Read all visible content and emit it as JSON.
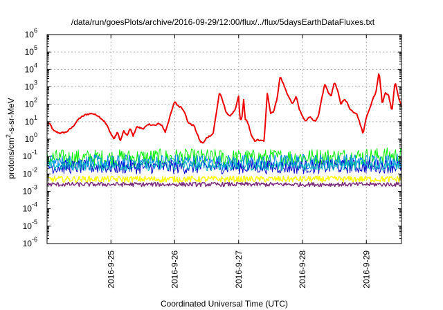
{
  "chart_data": {
    "type": "line",
    "title": "/data/run/goesPlots/archive/2016-09-29/12:00/flux/../flux/5daysEarthDataFluxes.txt",
    "xlabel": "Coordinated Universal Time (UTC)",
    "ylabel_parts": {
      "base": "protons/cm",
      "sup": "2",
      "rest": "-s-sr-MeV"
    },
    "xlim": [
      24.0,
      29.55
    ],
    "x_ticks": [
      {
        "x": 25,
        "label": "2016-9-25"
      },
      {
        "x": 26,
        "label": "2016-9-26"
      },
      {
        "x": 27,
        "label": "2016-9-27"
      },
      {
        "x": 28,
        "label": "2016-9-28"
      },
      {
        "x": 29,
        "label": "2016-9-29"
      }
    ],
    "y_scale": "log",
    "ylim": [
      1e-06,
      1000000.0
    ],
    "y_ticks": [
      {
        "exp": -6,
        "base": "10",
        "sup": "-6"
      },
      {
        "exp": -5,
        "base": "10",
        "sup": "-5"
      },
      {
        "exp": -4,
        "base": "10",
        "sup": "-4"
      },
      {
        "exp": -3,
        "base": "10",
        "sup": "-3"
      },
      {
        "exp": -2,
        "base": "10",
        "sup": "-2"
      },
      {
        "exp": -1,
        "base": "10",
        "sup": "-1"
      },
      {
        "exp": 0,
        "base": "10",
        "sup": "0"
      },
      {
        "exp": 1,
        "base": "10",
        "sup": "1"
      },
      {
        "exp": 2,
        "base": "10",
        "sup": "2"
      },
      {
        "exp": 3,
        "base": "10",
        "sup": "3"
      },
      {
        "exp": 4,
        "base": "10",
        "sup": "4"
      },
      {
        "exp": 5,
        "base": "10",
        "sup": "5"
      },
      {
        "exp": 6,
        "base": "10",
        "sup": "6"
      }
    ],
    "grid": true,
    "series": [
      {
        "color": "#ee0000",
        "width": 2,
        "noise": 0.04,
        "points": [
          [
            24.0,
            8
          ],
          [
            24.05,
            7
          ],
          [
            24.1,
            3
          ],
          [
            24.2,
            2.2
          ],
          [
            24.3,
            2.5
          ],
          [
            24.4,
            5
          ],
          [
            24.5,
            15
          ],
          [
            24.6,
            25
          ],
          [
            24.7,
            30
          ],
          [
            24.8,
            22
          ],
          [
            24.85,
            15
          ],
          [
            24.9,
            10
          ],
          [
            24.95,
            5
          ],
          [
            25.0,
            2
          ],
          [
            25.05,
            1
          ],
          [
            25.1,
            2.5
          ],
          [
            25.15,
            0.8
          ],
          [
            25.2,
            3
          ],
          [
            25.25,
            1.5
          ],
          [
            25.3,
            4
          ],
          [
            25.35,
            1.5
          ],
          [
            25.4,
            5
          ],
          [
            25.5,
            4
          ],
          [
            25.6,
            7
          ],
          [
            25.7,
            6
          ],
          [
            25.75,
            8
          ],
          [
            25.8,
            6
          ],
          [
            25.85,
            2.5
          ],
          [
            25.9,
            10
          ],
          [
            25.95,
            40
          ],
          [
            26.0,
            150
          ],
          [
            26.05,
            80
          ],
          [
            26.1,
            70
          ],
          [
            26.15,
            40
          ],
          [
            26.2,
            10
          ],
          [
            26.25,
            7
          ],
          [
            26.3,
            6
          ],
          [
            26.35,
            2
          ],
          [
            26.4,
            0.7
          ],
          [
            26.45,
            0.6
          ],
          [
            26.5,
            1.2
          ],
          [
            26.6,
            2
          ],
          [
            26.65,
            30
          ],
          [
            26.7,
            500
          ],
          [
            26.75,
            150
          ],
          [
            26.8,
            40
          ],
          [
            26.85,
            20
          ],
          [
            26.9,
            30
          ],
          [
            26.95,
            50
          ],
          [
            27.0,
            300
          ],
          [
            27.02,
            12
          ],
          [
            27.05,
            15
          ],
          [
            27.08,
            200
          ],
          [
            27.1,
            15
          ],
          [
            27.15,
            8
          ],
          [
            27.2,
            1.5
          ],
          [
            27.25,
            0.8
          ],
          [
            27.3,
            0.9
          ],
          [
            27.35,
            0.8
          ],
          [
            27.4,
            0.8
          ],
          [
            27.45,
            500
          ],
          [
            27.5,
            30
          ],
          [
            27.55,
            40
          ],
          [
            27.6,
            200
          ],
          [
            27.65,
            4000
          ],
          [
            27.7,
            1500
          ],
          [
            27.75,
            500
          ],
          [
            27.8,
            200
          ],
          [
            27.85,
            100
          ],
          [
            27.9,
            300
          ],
          [
            27.95,
            50
          ],
          [
            28.0,
            20
          ],
          [
            28.05,
            10
          ],
          [
            28.1,
            20
          ],
          [
            28.15,
            15
          ],
          [
            28.2,
            10
          ],
          [
            28.25,
            20
          ],
          [
            28.3,
            200
          ],
          [
            28.35,
            1500
          ],
          [
            28.4,
            500
          ],
          [
            28.45,
            300
          ],
          [
            28.5,
            2000
          ],
          [
            28.55,
            600
          ],
          [
            28.6,
            100
          ],
          [
            28.65,
            200
          ],
          [
            28.7,
            120
          ],
          [
            28.75,
            50
          ],
          [
            28.8,
            35
          ],
          [
            28.85,
            30
          ],
          [
            28.9,
            8
          ],
          [
            28.95,
            2
          ],
          [
            29.0,
            20
          ],
          [
            29.05,
            50
          ],
          [
            29.1,
            200
          ],
          [
            29.15,
            500
          ],
          [
            29.2,
            8000
          ],
          [
            29.25,
            100
          ],
          [
            29.3,
            500
          ],
          [
            29.35,
            300
          ],
          [
            29.4,
            40
          ],
          [
            29.45,
            2000
          ],
          [
            29.5,
            300
          ],
          [
            29.55,
            70
          ]
        ]
      },
      {
        "color": "#00ee00",
        "width": 1,
        "noise": 0.5,
        "points": [
          [
            24.0,
            0.08
          ],
          [
            25.0,
            0.08
          ],
          [
            26.0,
            0.09
          ],
          [
            27.0,
            0.08
          ],
          [
            28.0,
            0.09
          ],
          [
            29.0,
            0.1
          ],
          [
            29.55,
            0.11
          ]
        ]
      },
      {
        "color": "#0080ff",
        "width": 1,
        "noise": 0.45,
        "points": [
          [
            24.0,
            0.045
          ],
          [
            25.0,
            0.045
          ],
          [
            26.0,
            0.05
          ],
          [
            27.0,
            0.045
          ],
          [
            28.0,
            0.05
          ],
          [
            29.0,
            0.05
          ],
          [
            29.55,
            0.055
          ]
        ]
      },
      {
        "color": "#0000cc",
        "width": 1,
        "noise": 0.4,
        "points": [
          [
            24.0,
            0.025
          ],
          [
            25.0,
            0.025
          ],
          [
            26.0,
            0.025
          ],
          [
            27.0,
            0.025
          ],
          [
            28.0,
            0.025
          ],
          [
            29.0,
            0.027
          ],
          [
            29.55,
            0.028
          ]
        ]
      },
      {
        "color": "#00bbbb",
        "width": 1,
        "noise": 0.3,
        "points": [
          [
            24.0,
            0.03
          ],
          [
            25.0,
            0.03
          ],
          [
            26.0,
            0.03
          ],
          [
            27.0,
            0.03
          ],
          [
            28.0,
            0.03
          ],
          [
            29.0,
            0.032
          ],
          [
            29.55,
            0.032
          ]
        ]
      },
      {
        "color": "#ffff00",
        "width": 1.5,
        "noise": 0.18,
        "points": [
          [
            24.0,
            0.005
          ],
          [
            25.0,
            0.005
          ],
          [
            26.0,
            0.005
          ],
          [
            27.0,
            0.005
          ],
          [
            28.0,
            0.005
          ],
          [
            29.0,
            0.005
          ],
          [
            29.55,
            0.005
          ]
        ]
      },
      {
        "color": "#7a2a7a",
        "width": 1.5,
        "noise": 0.12,
        "points": [
          [
            24.0,
            0.0025
          ],
          [
            25.0,
            0.0025
          ],
          [
            26.0,
            0.0025
          ],
          [
            27.0,
            0.0025
          ],
          [
            28.0,
            0.0025
          ],
          [
            29.0,
            0.0025
          ],
          [
            29.55,
            0.0025
          ]
        ]
      }
    ]
  }
}
